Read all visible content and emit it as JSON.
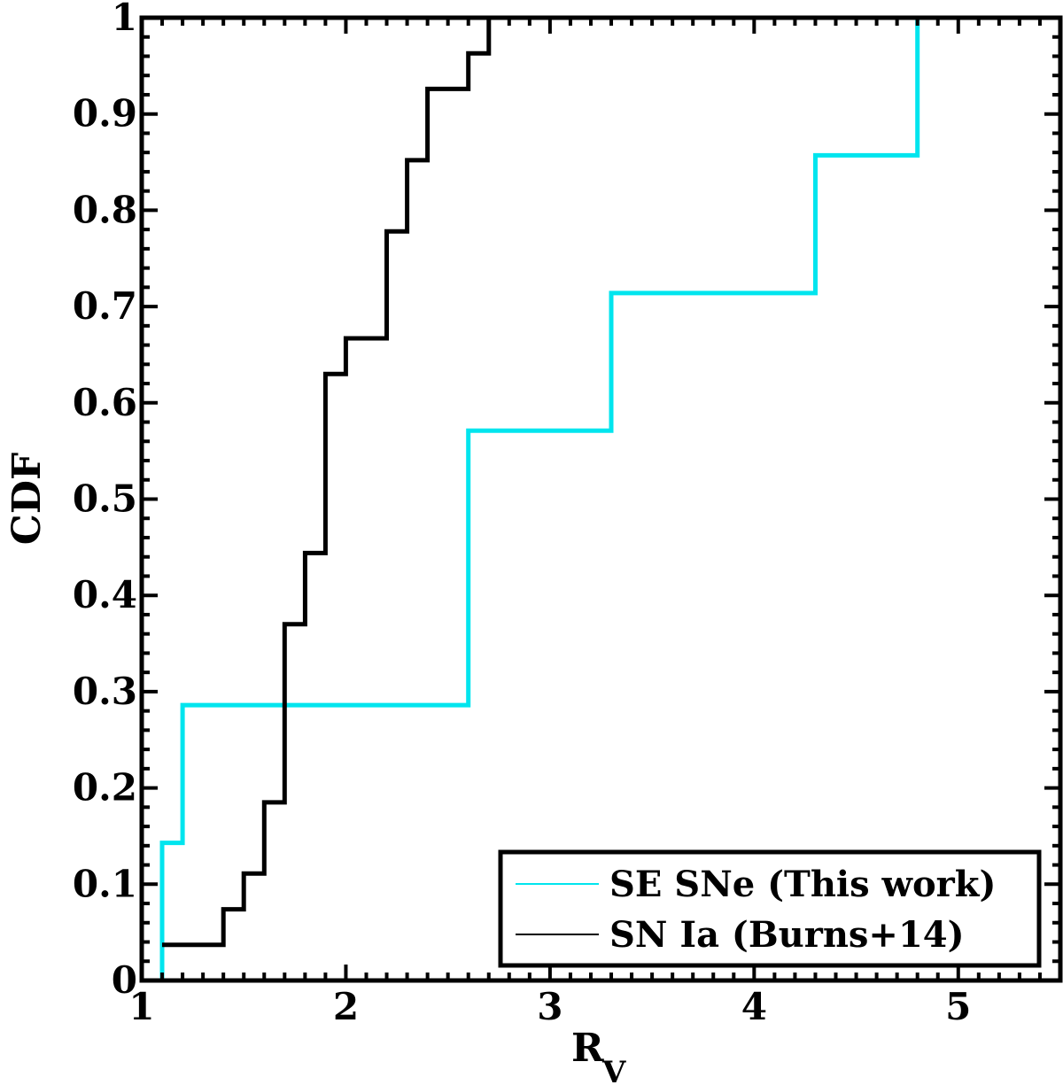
{
  "chart_data": {
    "type": "line",
    "step": true,
    "xlabel": "R",
    "xlabel_subscript": "V",
    "ylabel": "CDF",
    "xlim": [
      1,
      5.5
    ],
    "ylim": [
      0,
      1
    ],
    "x_ticks": [
      "1",
      "2",
      "3",
      "4",
      "5"
    ],
    "x_tick_values": [
      1,
      2,
      3,
      4,
      5
    ],
    "y_ticks": [
      "0",
      "0.1",
      "0.2",
      "0.3",
      "0.4",
      "0.5",
      "0.6",
      "0.7",
      "0.8",
      "0.9",
      "1"
    ],
    "y_tick_values": [
      0,
      0.1,
      0.2,
      0.3,
      0.4,
      0.5,
      0.6,
      0.7,
      0.8,
      0.9,
      1.0
    ],
    "legend_position": "bottom-right",
    "series": [
      {
        "name": "SE SNe (This work)",
        "color": "#00e5ee",
        "points": [
          [
            1.1,
            0
          ],
          [
            1.1,
            0.143
          ],
          [
            1.2,
            0.143
          ],
          [
            1.2,
            0.286
          ],
          [
            2.6,
            0.286
          ],
          [
            2.6,
            0.571
          ],
          [
            3.3,
            0.571
          ],
          [
            3.3,
            0.714
          ],
          [
            4.3,
            0.714
          ],
          [
            4.3,
            0.857
          ],
          [
            4.8,
            0.857
          ],
          [
            4.8,
            1.0
          ]
        ]
      },
      {
        "name": "SN Ia (Burns+14)",
        "color": "#000000",
        "points": [
          [
            1.1,
            0.037
          ],
          [
            1.4,
            0.037
          ],
          [
            1.4,
            0.074
          ],
          [
            1.5,
            0.074
          ],
          [
            1.5,
            0.111
          ],
          [
            1.6,
            0.111
          ],
          [
            1.6,
            0.185
          ],
          [
            1.7,
            0.185
          ],
          [
            1.7,
            0.37
          ],
          [
            1.8,
            0.37
          ],
          [
            1.8,
            0.444
          ],
          [
            1.9,
            0.444
          ],
          [
            1.9,
            0.63
          ],
          [
            2.0,
            0.63
          ],
          [
            2.0,
            0.667
          ],
          [
            2.2,
            0.667
          ],
          [
            2.2,
            0.778
          ],
          [
            2.3,
            0.778
          ],
          [
            2.3,
            0.852
          ],
          [
            2.4,
            0.852
          ],
          [
            2.4,
            0.926
          ],
          [
            2.6,
            0.926
          ],
          [
            2.6,
            0.963
          ],
          [
            2.7,
            0.963
          ],
          [
            2.7,
            1.0
          ]
        ]
      }
    ]
  }
}
